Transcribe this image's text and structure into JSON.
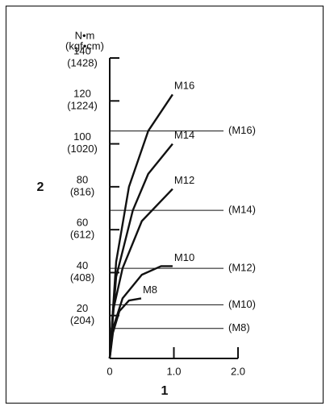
{
  "chart_data": {
    "type": "line",
    "y_unit": "N•m",
    "y_unit_alt": "(kgf•cm)",
    "y_label": "2",
    "x_label": "1",
    "xlim": [
      0,
      2
    ],
    "xticks": [
      0,
      {
        "value": 1,
        "label": "1.0"
      },
      {
        "value": 2,
        "label": "2.0"
      }
    ],
    "ylim": [
      0,
      140
    ],
    "yticks": [
      20,
      40,
      60,
      80,
      100,
      120,
      140
    ],
    "ytick_alt_labels": [
      "(204)",
      "(408)",
      "(612)",
      "(816)",
      "(1020)",
      "(1224)",
      "(1428)"
    ],
    "color": "#111111",
    "series": [
      {
        "name": "M16",
        "x": [
          0,
          0.1,
          0.3,
          0.6,
          0.98
        ],
        "values": [
          0,
          45,
          80,
          106,
          123
        ]
      },
      {
        "name": "M14",
        "x": [
          0,
          0.1,
          0.36,
          0.6,
          0.98
        ],
        "values": [
          0,
          38,
          69,
          86,
          100
        ]
      },
      {
        "name": "M12",
        "x": [
          0,
          0.05,
          0.2,
          0.5,
          0.98
        ],
        "values": [
          0,
          22,
          42,
          64,
          79
        ]
      },
      {
        "name": "M10",
        "x": [
          0,
          0.05,
          0.2,
          0.5,
          0.8,
          0.98
        ],
        "values": [
          0,
          14,
          28,
          39,
          43,
          43
        ]
      },
      {
        "name": "M8",
        "x": [
          0,
          0.05,
          0.15,
          0.3,
          0.49
        ],
        "values": [
          0,
          12,
          22,
          27,
          28
        ]
      }
    ],
    "limits": [
      {
        "label": "(M16)",
        "value": 106
      },
      {
        "label": "(M14)",
        "value": 69
      },
      {
        "label": "(M12)",
        "value": 42
      },
      {
        "label": "(M10)",
        "value": 25
      },
      {
        "label": "(M8)",
        "value": 14
      }
    ]
  }
}
